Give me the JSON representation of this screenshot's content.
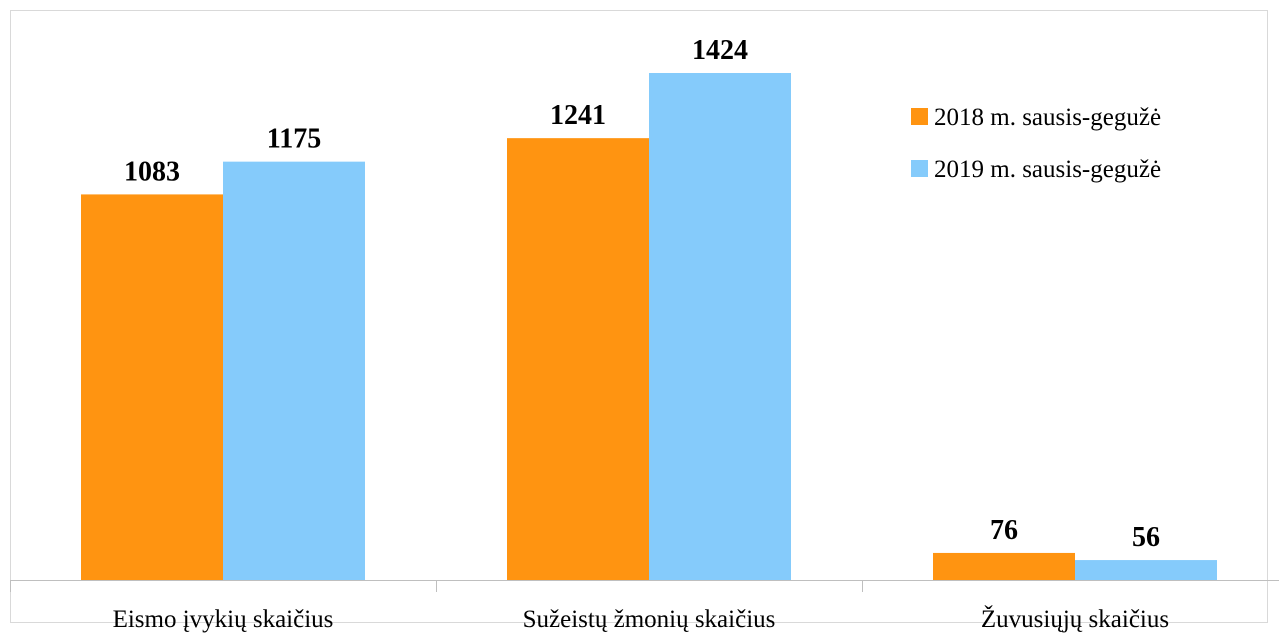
{
  "chart_data": {
    "type": "bar",
    "categories": [
      "Eismo įvykių skaičius",
      "Sužeistų žmonių skaičius",
      "Žuvusiųjų skaičius"
    ],
    "series": [
      {
        "name": "2018 m. sausis-gegužė",
        "values": [
          1083,
          1241,
          76
        ],
        "color": "#FF9411"
      },
      {
        "name": "2019 m. sausis-gegužė",
        "values": [
          1175,
          1424,
          56
        ],
        "color": "#85CBFB"
      }
    ],
    "ylim": [
      0,
      1650
    ],
    "grid": false,
    "legend_position": "right"
  }
}
